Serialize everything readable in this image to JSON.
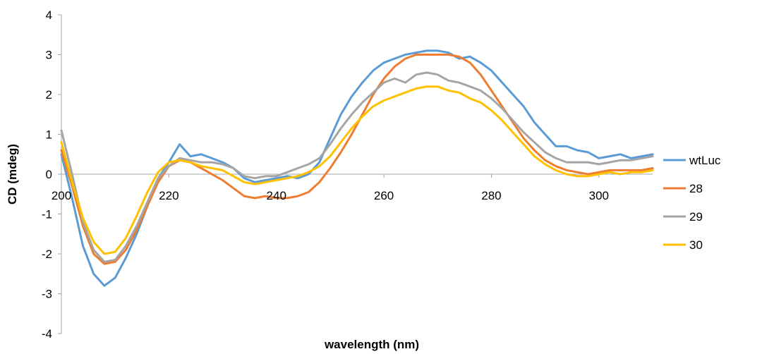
{
  "chart_data": {
    "type": "line",
    "xlabel": "wavelength (nm)",
    "ylabel": "CD (mdeg)",
    "xlim": [
      200,
      310
    ],
    "ylim": [
      -4,
      4
    ],
    "x_ticks": [
      200,
      220,
      240,
      260,
      280,
      300
    ],
    "y_ticks": [
      4,
      3,
      2,
      1,
      0,
      -1,
      -2,
      -3,
      -4
    ],
    "legend_position": "right",
    "grid": false,
    "series": [
      {
        "name": "wtLuc",
        "color": "#5b9bd5",
        "x": [
          200,
          202,
          204,
          206,
          208,
          210,
          212,
          214,
          216,
          218,
          220,
          222,
          224,
          226,
          228,
          230,
          232,
          234,
          236,
          238,
          240,
          242,
          244,
          246,
          248,
          250,
          252,
          254,
          256,
          258,
          260,
          262,
          264,
          266,
          268,
          270,
          272,
          274,
          276,
          278,
          280,
          282,
          284,
          286,
          288,
          290,
          292,
          294,
          296,
          298,
          300,
          302,
          304,
          306,
          308,
          310
        ],
        "values": [
          0.5,
          -0.6,
          -1.8,
          -2.5,
          -2.8,
          -2.6,
          -2.1,
          -1.5,
          -0.8,
          -0.1,
          0.3,
          0.75,
          0.45,
          0.5,
          0.4,
          0.3,
          0.15,
          -0.1,
          -0.2,
          -0.15,
          -0.1,
          -0.05,
          -0.1,
          0.0,
          0.3,
          0.9,
          1.5,
          1.95,
          2.3,
          2.6,
          2.8,
          2.9,
          3.0,
          3.05,
          3.1,
          3.1,
          3.05,
          2.9,
          2.95,
          2.8,
          2.6,
          2.3,
          2.0,
          1.7,
          1.3,
          1.0,
          0.7,
          0.7,
          0.6,
          0.55,
          0.4,
          0.45,
          0.5,
          0.4,
          0.45,
          0.5
        ]
      },
      {
        "name": "28",
        "color": "#ed7d31",
        "x": [
          200,
          202,
          204,
          206,
          208,
          210,
          212,
          214,
          216,
          218,
          220,
          222,
          224,
          226,
          228,
          230,
          232,
          234,
          236,
          238,
          240,
          242,
          244,
          246,
          248,
          250,
          252,
          254,
          256,
          258,
          260,
          262,
          264,
          266,
          268,
          270,
          272,
          274,
          276,
          278,
          280,
          282,
          284,
          286,
          288,
          290,
          292,
          294,
          296,
          298,
          300,
          302,
          304,
          306,
          308,
          310
        ],
        "values": [
          0.6,
          -0.3,
          -1.3,
          -2.0,
          -2.25,
          -2.2,
          -1.9,
          -1.4,
          -0.8,
          -0.2,
          0.2,
          0.35,
          0.3,
          0.15,
          0.0,
          -0.15,
          -0.35,
          -0.55,
          -0.6,
          -0.55,
          -0.6,
          -0.6,
          -0.55,
          -0.45,
          -0.2,
          0.15,
          0.55,
          1.0,
          1.5,
          2.0,
          2.4,
          2.7,
          2.9,
          3.0,
          3.0,
          3.0,
          3.0,
          2.95,
          2.8,
          2.5,
          2.1,
          1.7,
          1.3,
          0.9,
          0.6,
          0.35,
          0.2,
          0.1,
          0.05,
          0.0,
          0.05,
          0.1,
          0.1,
          0.1,
          0.1,
          0.15
        ]
      },
      {
        "name": "29",
        "color": "#a5a5a5",
        "x": [
          200,
          202,
          204,
          206,
          208,
          210,
          212,
          214,
          216,
          218,
          220,
          222,
          224,
          226,
          228,
          230,
          232,
          234,
          236,
          238,
          240,
          242,
          244,
          246,
          248,
          250,
          252,
          254,
          256,
          258,
          260,
          262,
          264,
          266,
          268,
          270,
          272,
          274,
          276,
          278,
          280,
          282,
          284,
          286,
          288,
          290,
          292,
          294,
          296,
          298,
          300,
          302,
          304,
          306,
          308,
          310
        ],
        "values": [
          1.1,
          0.0,
          -1.2,
          -1.9,
          -2.2,
          -2.15,
          -1.8,
          -1.3,
          -0.7,
          -0.1,
          0.2,
          0.4,
          0.35,
          0.3,
          0.3,
          0.25,
          0.15,
          -0.05,
          -0.1,
          -0.05,
          -0.05,
          0.05,
          0.15,
          0.25,
          0.4,
          0.75,
          1.15,
          1.5,
          1.8,
          2.05,
          2.3,
          2.4,
          2.3,
          2.5,
          2.55,
          2.5,
          2.35,
          2.3,
          2.2,
          2.1,
          1.9,
          1.65,
          1.35,
          1.05,
          0.8,
          0.55,
          0.4,
          0.3,
          0.3,
          0.3,
          0.25,
          0.3,
          0.35,
          0.35,
          0.4,
          0.45
        ]
      },
      {
        "name": "30",
        "color": "#ffc000",
        "x": [
          200,
          202,
          204,
          206,
          208,
          210,
          212,
          214,
          216,
          218,
          220,
          222,
          224,
          226,
          228,
          230,
          232,
          234,
          236,
          238,
          240,
          242,
          244,
          246,
          248,
          250,
          252,
          254,
          256,
          258,
          260,
          262,
          264,
          266,
          268,
          270,
          272,
          274,
          276,
          278,
          280,
          282,
          284,
          286,
          288,
          290,
          292,
          294,
          296,
          298,
          300,
          302,
          304,
          306,
          308,
          310
        ],
        "values": [
          0.8,
          -0.2,
          -1.1,
          -1.7,
          -2.0,
          -1.95,
          -1.6,
          -1.05,
          -0.45,
          0.05,
          0.3,
          0.35,
          0.3,
          0.2,
          0.15,
          0.1,
          -0.05,
          -0.2,
          -0.25,
          -0.2,
          -0.15,
          -0.1,
          -0.05,
          0.05,
          0.2,
          0.45,
          0.8,
          1.15,
          1.45,
          1.7,
          1.85,
          1.95,
          2.05,
          2.15,
          2.2,
          2.2,
          2.1,
          2.05,
          1.9,
          1.8,
          1.6,
          1.35,
          1.05,
          0.75,
          0.45,
          0.25,
          0.1,
          0.0,
          -0.05,
          -0.05,
          0.0,
          0.05,
          0.0,
          0.05,
          0.05,
          0.1
        ]
      }
    ]
  }
}
